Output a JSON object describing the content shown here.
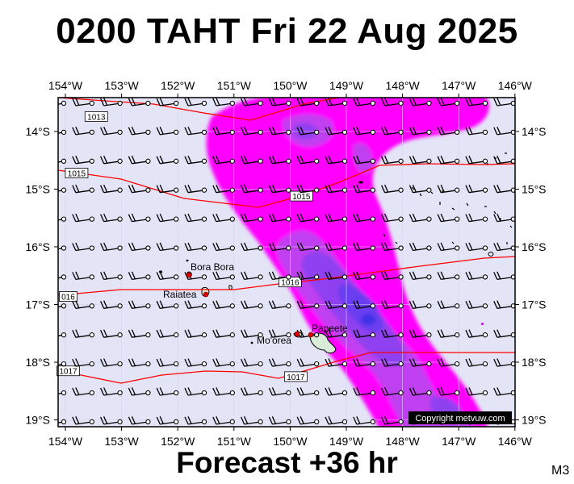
{
  "title": "0200 TAHT Fri 22 Aug 2025",
  "footer": "Forecast +36 hr",
  "model_code": "M3",
  "copyright": "Copyright metvuw.com",
  "map": {
    "lon_range": [
      -154,
      -146
    ],
    "lat_range": [
      -19,
      -13.7
    ],
    "lon_ticks": [
      "154°W",
      "153°W",
      "152°W",
      "151°W",
      "150°W",
      "149°W",
      "148°W",
      "147°W",
      "146°W"
    ],
    "lat_ticks": [
      "14°S",
      "15°S",
      "16°S",
      "17°S",
      "18°S",
      "19°S"
    ],
    "background_color": "#e4e4f7",
    "rain_colors": [
      "#ff00ff",
      "#bf3ff0",
      "#8f3ff0",
      "#6a3cf0",
      "#4030e8"
    ],
    "isobar_color": "#ff0000",
    "isobars": [
      {
        "label": "1013",
        "label_lon": -153.45,
        "label_lat": -13.74
      },
      {
        "label": "1015",
        "label_lon": -153.8,
        "label_lat": -14.72
      },
      {
        "label": "1015",
        "label_lon": -149.8,
        "label_lat": -15.12
      },
      {
        "label": "016",
        "label_lon": -153.95,
        "label_lat": -16.86
      },
      {
        "label": "1016",
        "label_lon": -150.0,
        "label_lat": -16.61
      },
      {
        "label": "1017",
        "label_lon": -153.95,
        "label_lat": -18.15
      },
      {
        "label": "1017",
        "label_lon": -149.9,
        "label_lat": -18.25
      }
    ],
    "places": [
      {
        "name": "Bora Bora",
        "lon": -151.75,
        "lat": -16.5
      },
      {
        "name": "Raiatea",
        "lon": -151.45,
        "lat": -16.83
      },
      {
        "name": "Mo'orea",
        "lon": -149.84,
        "lat": -17.54
      },
      {
        "name": "Papeete",
        "lon": -149.57,
        "lat": -17.53
      }
    ],
    "wind": {
      "direction": "east-southeast",
      "barb": "15-20 kt"
    }
  }
}
